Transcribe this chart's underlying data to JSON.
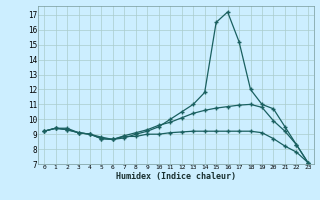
{
  "xlabel": "Humidex (Indice chaleur)",
  "bg_color": "#cceeff",
  "grid_color": "#aacccc",
  "line_color": "#1a6060",
  "xlim": [
    -0.5,
    23.5
  ],
  "ylim": [
    7,
    17.6
  ],
  "yticks": [
    7,
    8,
    9,
    10,
    11,
    12,
    13,
    14,
    15,
    16,
    17
  ],
  "xticks": [
    0,
    1,
    2,
    3,
    4,
    5,
    6,
    7,
    8,
    9,
    10,
    11,
    12,
    13,
    14,
    15,
    16,
    17,
    18,
    19,
    20,
    21,
    22,
    23
  ],
  "line1_x": [
    0,
    1,
    2,
    3,
    4,
    5,
    6,
    7,
    8,
    9,
    10,
    11,
    12,
    13,
    14,
    15,
    16,
    17,
    18,
    19,
    20,
    21,
    22,
    23
  ],
  "line1_y": [
    9.2,
    9.4,
    9.4,
    9.1,
    9.0,
    8.8,
    8.65,
    8.75,
    9.0,
    9.2,
    9.5,
    10.0,
    10.5,
    11.0,
    11.8,
    16.5,
    17.2,
    15.2,
    12.0,
    11.0,
    10.7,
    9.5,
    8.3,
    7.1
  ],
  "line2_x": [
    0,
    1,
    2,
    3,
    4,
    5,
    6,
    7,
    8,
    9,
    10,
    11,
    12,
    13,
    14,
    15,
    16,
    17,
    18,
    19,
    20,
    21,
    22,
    23
  ],
  "line2_y": [
    9.2,
    9.4,
    9.3,
    9.1,
    9.0,
    8.7,
    8.65,
    8.9,
    9.1,
    9.3,
    9.6,
    9.8,
    10.1,
    10.4,
    10.6,
    10.75,
    10.85,
    10.95,
    11.0,
    10.8,
    9.9,
    9.2,
    8.3,
    7.1
  ],
  "line3_x": [
    0,
    1,
    2,
    3,
    4,
    5,
    6,
    7,
    8,
    9,
    10,
    11,
    12,
    13,
    14,
    15,
    16,
    17,
    18,
    19,
    20,
    21,
    22,
    23
  ],
  "line3_y": [
    9.2,
    9.4,
    9.3,
    9.1,
    9.0,
    8.7,
    8.65,
    8.85,
    8.85,
    9.0,
    9.0,
    9.1,
    9.15,
    9.2,
    9.2,
    9.2,
    9.2,
    9.2,
    9.2,
    9.1,
    8.7,
    8.2,
    7.8,
    7.1
  ]
}
